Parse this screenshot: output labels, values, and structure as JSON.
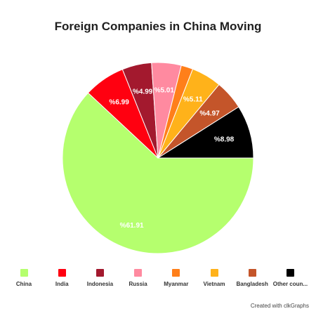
{
  "chart_data": {
    "type": "pie",
    "title": "Foreign Companies in China Moving",
    "slices": [
      {
        "name": "China",
        "value": 61.91,
        "label": "%61.91",
        "color": "#b5ff6e"
      },
      {
        "name": "India",
        "value": 6.99,
        "label": "%6.99",
        "color": "#ff0010"
      },
      {
        "name": "Indonesia",
        "value": 4.99,
        "label": "%4.99",
        "color": "#a3192e"
      },
      {
        "name": "Russia",
        "value": 5.01,
        "label": "%5.01",
        "color": "#ff8aa0"
      },
      {
        "name": "Myanmar",
        "value": 2.0,
        "label": "",
        "color": "#ff7f1a"
      },
      {
        "name": "Vietnam",
        "value": 5.11,
        "label": "%5.11",
        "color": "#ffb21a"
      },
      {
        "name": "Bangladesh",
        "value": 4.97,
        "label": "%4.97",
        "color": "#c4552a"
      },
      {
        "name": "Other coun...",
        "value": 8.98,
        "label": "%8.98",
        "color": "#000000"
      }
    ],
    "legend_position": "bottom"
  },
  "footer": {
    "credit": "Created with clkGraphs"
  }
}
